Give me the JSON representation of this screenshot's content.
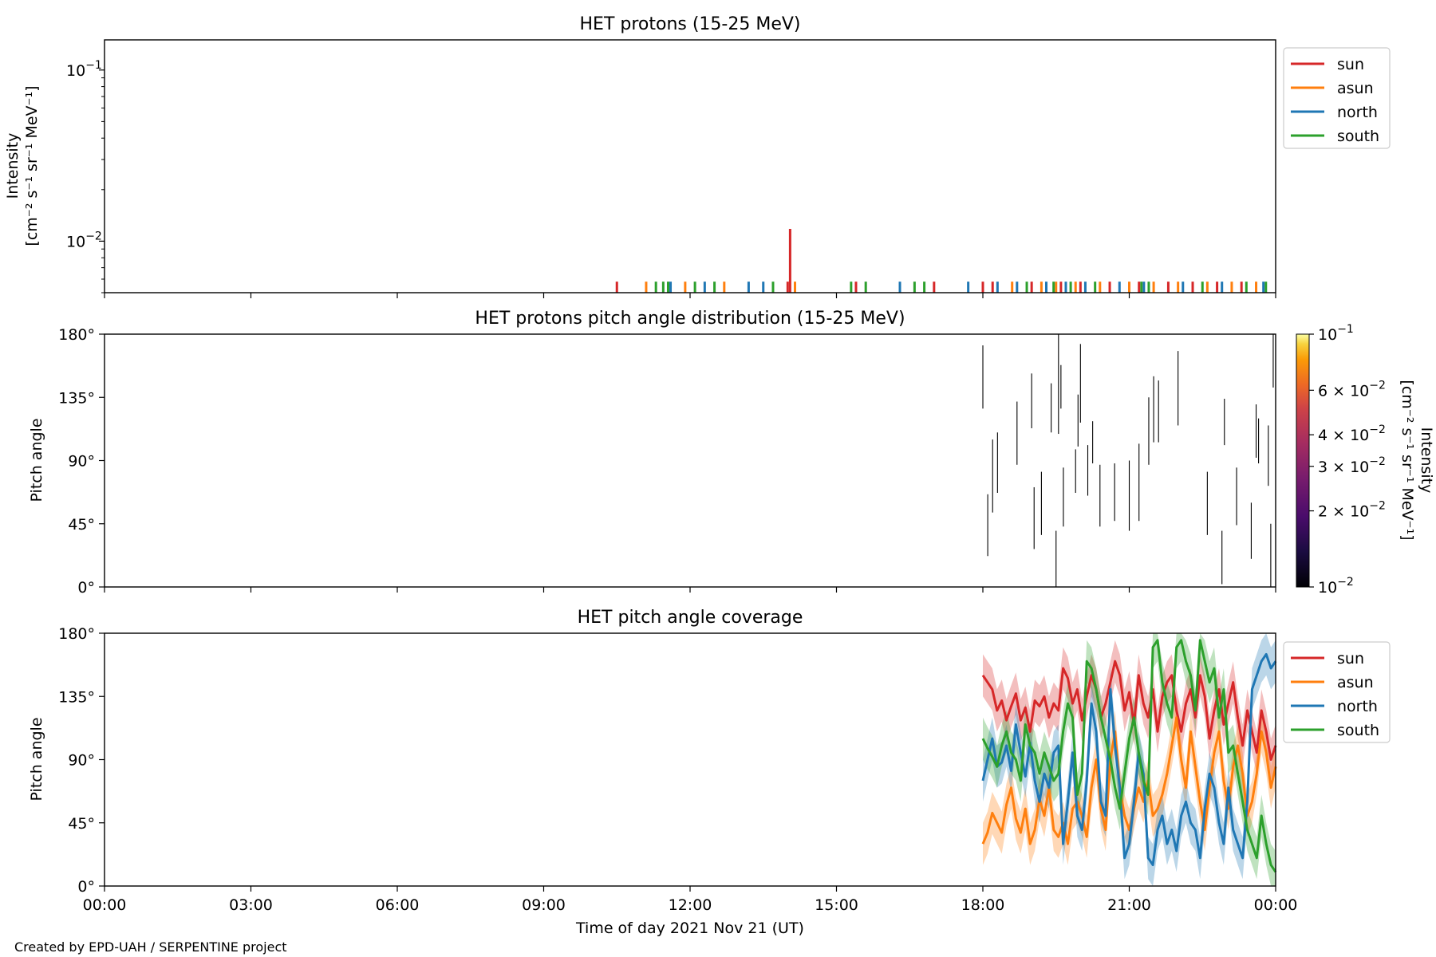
{
  "footer": {
    "credit": "Created by EPD-UAH / SERPENTINE project"
  },
  "colors": {
    "sun": "#d62728",
    "asun": "#ff7f0e",
    "north": "#1f77b4",
    "south": "#2ca02c"
  },
  "chart_data": [
    {
      "id": "intensity",
      "type": "line",
      "title": "HET protons (15-25 MeV)",
      "ylabel": [
        "Intensity",
        "[cm⁻² s⁻¹ sr⁻¹ MeV⁻¹]"
      ],
      "yscale": "log",
      "ylim": [
        0.005,
        0.15
      ],
      "yticks": [
        {
          "value": 0.1,
          "base": "10",
          "exp": "−1"
        },
        {
          "value": 0.01,
          "base": "10",
          "exp": "−2"
        }
      ],
      "xlim_hours": [
        0,
        24
      ],
      "legend": {
        "placement": "outside-top-right",
        "entries": [
          "sun",
          "asun",
          "north",
          "south"
        ]
      },
      "series": [
        {
          "name": "sun",
          "color": "#d62728",
          "spikes": [
            [
              10.5,
              0.0058
            ],
            [
              14.0,
              0.0058
            ],
            [
              14.05,
              0.0118
            ],
            [
              15.4,
              0.0058
            ],
            [
              17.0,
              0.0058
            ],
            [
              18.0,
              0.0058
            ],
            [
              18.2,
              0.0058
            ],
            [
              19.0,
              0.0058
            ],
            [
              19.6,
              0.0058
            ],
            [
              20.0,
              0.0058
            ],
            [
              20.6,
              0.0058
            ],
            [
              21.2,
              0.0058
            ],
            [
              21.8,
              0.0058
            ],
            [
              22.3,
              0.0058
            ],
            [
              22.8,
              0.0058
            ],
            [
              23.3,
              0.0058
            ]
          ]
        },
        {
          "name": "asun",
          "color": "#ff7f0e",
          "spikes": [
            [
              11.1,
              0.0058
            ],
            [
              11.9,
              0.0058
            ],
            [
              12.7,
              0.0058
            ],
            [
              14.15,
              0.0058
            ],
            [
              18.6,
              0.0058
            ],
            [
              19.2,
              0.0058
            ],
            [
              19.5,
              0.0058
            ],
            [
              19.9,
              0.0058
            ],
            [
              20.4,
              0.0058
            ],
            [
              21.0,
              0.0058
            ],
            [
              21.5,
              0.0058
            ],
            [
              22.0,
              0.0058
            ],
            [
              22.6,
              0.0058
            ],
            [
              23.1,
              0.0058
            ],
            [
              23.6,
              0.0058
            ]
          ]
        },
        {
          "name": "north",
          "color": "#1f77b4",
          "spikes": [
            [
              11.6,
              0.0058
            ],
            [
              12.3,
              0.0058
            ],
            [
              13.2,
              0.0058
            ],
            [
              13.5,
              0.0058
            ],
            [
              16.3,
              0.0058
            ],
            [
              17.7,
              0.0058
            ],
            [
              18.3,
              0.0058
            ],
            [
              18.7,
              0.0058
            ],
            [
              19.3,
              0.0058
            ],
            [
              19.7,
              0.0058
            ],
            [
              20.1,
              0.0058
            ],
            [
              20.8,
              0.0058
            ],
            [
              21.3,
              0.0058
            ],
            [
              22.1,
              0.0058
            ],
            [
              22.9,
              0.0058
            ],
            [
              23.75,
              0.0058
            ]
          ]
        },
        {
          "name": "south",
          "color": "#2ca02c",
          "spikes": [
            [
              11.3,
              0.0058
            ],
            [
              11.45,
              0.0058
            ],
            [
              11.55,
              0.0058
            ],
            [
              12.1,
              0.0058
            ],
            [
              12.5,
              0.0058
            ],
            [
              13.7,
              0.0058
            ],
            [
              15.3,
              0.0058
            ],
            [
              15.6,
              0.0058
            ],
            [
              16.6,
              0.0058
            ],
            [
              16.8,
              0.0058
            ],
            [
              18.9,
              0.0058
            ],
            [
              19.45,
              0.0058
            ],
            [
              19.8,
              0.0058
            ],
            [
              20.3,
              0.0058
            ],
            [
              21.25,
              0.0058
            ],
            [
              21.4,
              0.0058
            ],
            [
              22.5,
              0.0058
            ],
            [
              23.4,
              0.0058
            ],
            [
              23.8,
              0.0058
            ]
          ]
        }
      ]
    },
    {
      "id": "pad",
      "type": "heatmap",
      "title": "HET protons pitch angle distribution (15-25 MeV)",
      "ylabel": "Pitch angle",
      "ylim": [
        0,
        180
      ],
      "yticks": [
        "0°",
        "45°",
        "90°",
        "135°",
        "180°"
      ],
      "xlim_hours": [
        0,
        24
      ],
      "colorbar": {
        "label": [
          "Intensity",
          "[cm⁻² s⁻¹ sr⁻¹ MeV⁻¹]"
        ],
        "scale": "log",
        "range": [
          0.01,
          0.1
        ],
        "colormap": "inferno",
        "ticks": [
          {
            "value": 0.1,
            "text": "10",
            "exp": "−1"
          },
          {
            "value": 0.06,
            "text": "6 × 10",
            "exp": "−2"
          },
          {
            "value": 0.04,
            "text": "4 × 10",
            "exp": "−2"
          },
          {
            "value": 0.03,
            "text": "3 × 10",
            "exp": "−2"
          },
          {
            "value": 0.02,
            "text": "2 × 10",
            "exp": "−2"
          },
          {
            "value": 0.01,
            "text": "10",
            "exp": "−2"
          }
        ]
      },
      "segments": [
        [
          18.0,
          127,
          172
        ],
        [
          18.1,
          22,
          66
        ],
        [
          18.2,
          53,
          105
        ],
        [
          18.3,
          67,
          110
        ],
        [
          18.7,
          87,
          132
        ],
        [
          19.0,
          113,
          152
        ],
        [
          19.05,
          27,
          71
        ],
        [
          19.2,
          37,
          82
        ],
        [
          19.4,
          110,
          145
        ],
        [
          19.5,
          0,
          40
        ],
        [
          19.55,
          109,
          180
        ],
        [
          19.6,
          127,
          158
        ],
        [
          19.65,
          43,
          85
        ],
        [
          19.9,
          67,
          98
        ],
        [
          19.95,
          100,
          137
        ],
        [
          20.0,
          117,
          173
        ],
        [
          20.15,
          65,
          101
        ],
        [
          20.25,
          88,
          118
        ],
        [
          20.4,
          43,
          87
        ],
        [
          20.7,
          47,
          88
        ],
        [
          21.0,
          40,
          90
        ],
        [
          21.2,
          47,
          102
        ],
        [
          21.4,
          87,
          135
        ],
        [
          21.5,
          103,
          150
        ],
        [
          21.6,
          103,
          147
        ],
        [
          22.0,
          115,
          168
        ],
        [
          22.6,
          37,
          82
        ],
        [
          22.9,
          2,
          40
        ],
        [
          22.95,
          101,
          134
        ],
        [
          23.2,
          44,
          85
        ],
        [
          23.5,
          20,
          60
        ],
        [
          23.6,
          92,
          130
        ],
        [
          23.65,
          88,
          120
        ],
        [
          23.85,
          72,
          115
        ],
        [
          23.9,
          0,
          45
        ],
        [
          23.95,
          142,
          180
        ]
      ]
    },
    {
      "id": "coverage",
      "type": "line",
      "title": "HET pitch angle coverage",
      "ylabel": "Pitch angle",
      "ylim": [
        0,
        180
      ],
      "yticks": [
        "0°",
        "45°",
        "90°",
        "135°",
        "180°"
      ],
      "xlim_hours": [
        0,
        24
      ],
      "xticks": [
        "00:00",
        "03:00",
        "06:00",
        "09:00",
        "12:00",
        "15:00",
        "18:00",
        "21:00",
        "00:00"
      ],
      "xlabel": "Time of day 2021 Nov 21 (UT)",
      "data_start_hour": 18.0,
      "band_halfwidth": 15,
      "legend": {
        "placement": "outside-top-right",
        "entries": [
          "sun",
          "asun",
          "north",
          "south"
        ]
      },
      "series": [
        {
          "name": "sun",
          "color": "#d62728",
          "values": [
            150,
            145,
            140,
            125,
            132,
            118,
            128,
            137,
            118,
            127,
            110,
            132,
            128,
            135,
            120,
            130,
            125,
            155,
            148,
            130,
            140,
            118,
            135,
            150,
            140,
            120,
            130,
            145,
            160,
            150,
            125,
            138,
            115,
            150,
            130,
            120,
            140,
            110,
            135,
            145,
            150,
            125,
            110,
            130,
            140,
            120,
            150,
            135,
            105,
            125,
            140,
            115,
            130,
            145,
            120,
            100,
            125,
            110,
            95,
            125,
            110,
            90,
            100
          ]
        },
        {
          "name": "asun",
          "color": "#ff7f0e",
          "values": [
            30,
            38,
            52,
            45,
            38,
            58,
            70,
            48,
            38,
            55,
            30,
            40,
            62,
            50,
            70,
            40,
            35,
            45,
            30,
            55,
            60,
            50,
            35,
            70,
            90,
            55,
            40,
            90,
            110,
            70,
            50,
            40,
            55,
            70,
            60,
            75,
            50,
            55,
            65,
            80,
            100,
            120,
            90,
            70,
            110,
            85,
            60,
            40,
            70,
            95,
            110,
            75,
            55,
            85,
            100,
            80,
            50,
            60,
            80,
            110,
            95,
            70,
            85
          ]
        },
        {
          "name": "north",
          "color": "#1f77b4",
          "values": [
            75,
            90,
            105,
            85,
            88,
            100,
            82,
            115,
            95,
            78,
            102,
            75,
            60,
            80,
            70,
            95,
            100,
            30,
            60,
            95,
            50,
            40,
            75,
            130,
            110,
            60,
            50,
            140,
            100,
            70,
            20,
            30,
            60,
            95,
            80,
            20,
            15,
            40,
            50,
            30,
            40,
            25,
            50,
            60,
            45,
            40,
            20,
            55,
            80,
            70,
            45,
            30,
            70,
            40,
            30,
            20,
            60,
            140,
            150,
            160,
            165,
            155,
            160
          ]
        },
        {
          "name": "south",
          "color": "#2ca02c",
          "values": [
            105,
            98,
            92,
            85,
            100,
            110,
            95,
            90,
            75,
            115,
            100,
            95,
            80,
            95,
            85,
            75,
            80,
            110,
            130,
            120,
            65,
            80,
            160,
            155,
            140,
            120,
            105,
            90,
            70,
            55,
            80,
            105,
            120,
            95,
            75,
            65,
            170,
            175,
            145,
            130,
            120,
            170,
            175,
            160,
            150,
            125,
            175,
            160,
            145,
            155,
            120,
            140,
            95,
            100,
            80,
            60,
            40,
            30,
            20,
            50,
            30,
            15,
            10
          ]
        }
      ]
    }
  ]
}
